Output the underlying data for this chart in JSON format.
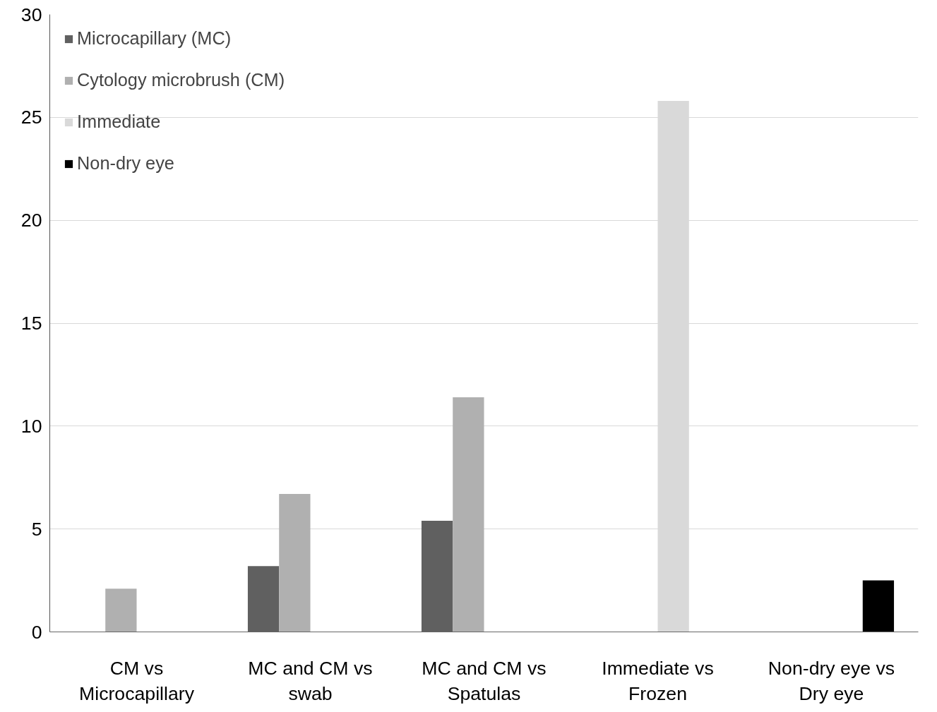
{
  "chart_data": {
    "type": "bar",
    "categories": [
      "CM vs\nMicrocapillary",
      "MC and CM vs\nswab",
      "MC and CM vs\nSpatulas",
      "Immediate vs\nFrozen",
      "Non-dry eye vs\nDry eye"
    ],
    "series": [
      {
        "name": "Microcapillary (MC)",
        "color": "#606060",
        "values": [
          null,
          3.2,
          5.4,
          null,
          null
        ]
      },
      {
        "name": "Cytology microbrush (CM)",
        "color": "#b0b0b0",
        "values": [
          2.1,
          6.7,
          11.4,
          null,
          null
        ]
      },
      {
        "name": "Immediate",
        "color": "#d9d9d9",
        "values": [
          null,
          null,
          null,
          25.8,
          null
        ]
      },
      {
        "name": "Non-dry eye",
        "color": "#000000",
        "values": [
          null,
          null,
          null,
          null,
          2.5
        ]
      }
    ],
    "ylim": [
      0,
      30
    ],
    "yticks": [
      0,
      5,
      10,
      15,
      20,
      25,
      30
    ],
    "grid": "y",
    "legend": "top left"
  }
}
